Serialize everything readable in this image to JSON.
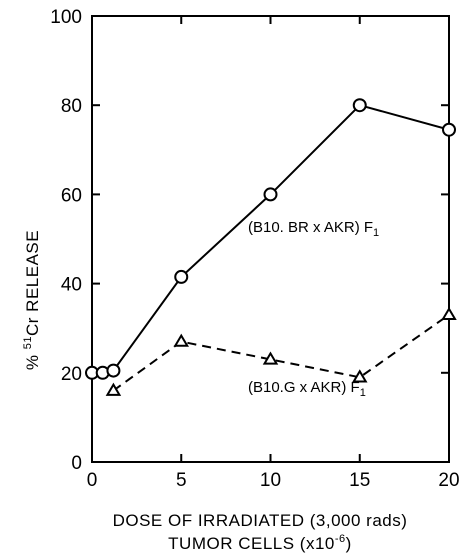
{
  "chart_data": {
    "type": "line",
    "xlabel_line1": "DOSE OF IRRADIATED (3,000 rads)",
    "xlabel_line2_prefix": "TUMOR CELLS (x10",
    "xlabel_line2_exp": "-6",
    "xlabel_line2_suffix": ")",
    "ylabel_prefix": "% ",
    "ylabel_sup": "51",
    "ylabel_suffix": "Cr  RELEASE",
    "xlim": [
      0,
      20
    ],
    "ylim": [
      0,
      100
    ],
    "x_ticks": [
      0,
      5,
      10,
      15,
      20
    ],
    "y_ticks": [
      0,
      20,
      40,
      60,
      80,
      100
    ],
    "x_tick_labels": [
      "0",
      "5",
      "10",
      "15",
      "20"
    ],
    "y_tick_labels": [
      "0",
      "20",
      "40",
      "60",
      "80",
      "100"
    ],
    "grid": false,
    "series": [
      {
        "name_main": "(B10. BR x AKR) F",
        "name_sub": "1",
        "marker": "circle",
        "linestyle": "solid",
        "color": "#000000",
        "x": [
          0,
          0.6,
          1.2,
          5,
          10,
          15,
          20
        ],
        "y": [
          20,
          20,
          20.5,
          41.5,
          60,
          80,
          74.5
        ]
      },
      {
        "name_main": "(B10.G x AKR) F",
        "name_sub": "1",
        "marker": "triangle",
        "linestyle": "dashed",
        "color": "#000000",
        "x": [
          1.2,
          5,
          10,
          15,
          20
        ],
        "y": [
          16,
          27,
          23,
          19,
          33
        ]
      }
    ]
  }
}
